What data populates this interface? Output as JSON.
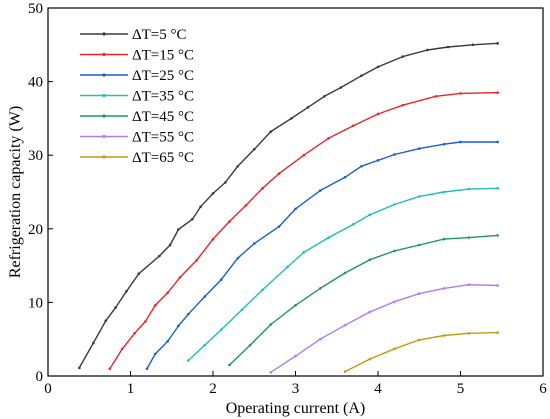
{
  "chart_data": {
    "type": "line",
    "xlabel": "Operating current (A)",
    "ylabel": "Refrigeration capacity (W)",
    "xlim": [
      0,
      6
    ],
    "ylim": [
      0,
      50
    ],
    "xticks": [
      "0",
      "1",
      "2",
      "3",
      "4",
      "5",
      "6"
    ],
    "yticks": [
      "0",
      "10",
      "20",
      "30",
      "40",
      "50"
    ],
    "grid": false,
    "legend_position": "top-left",
    "series": [
      {
        "name": "ΔT=5 °C",
        "color": "#3a3a3a",
        "points": [
          [
            0.38,
            1.1
          ],
          [
            0.55,
            4.5
          ],
          [
            0.7,
            7.5
          ],
          [
            0.82,
            9.3
          ],
          [
            0.95,
            11.5
          ],
          [
            1.1,
            13.9
          ],
          [
            1.35,
            16.3
          ],
          [
            1.48,
            17.8
          ],
          [
            1.58,
            19.9
          ],
          [
            1.75,
            21.3
          ],
          [
            1.85,
            23.0
          ],
          [
            2.0,
            24.8
          ],
          [
            2.15,
            26.3
          ],
          [
            2.3,
            28.5
          ],
          [
            2.5,
            30.8
          ],
          [
            2.7,
            33.2
          ],
          [
            2.95,
            35.0
          ],
          [
            3.15,
            36.5
          ],
          [
            3.35,
            38.0
          ],
          [
            3.55,
            39.2
          ],
          [
            3.8,
            40.8
          ],
          [
            4.0,
            42.0
          ],
          [
            4.3,
            43.4
          ],
          [
            4.6,
            44.3
          ],
          [
            4.85,
            44.7
          ],
          [
            5.15,
            45.0
          ],
          [
            5.45,
            45.2
          ]
        ]
      },
      {
        "name": "ΔT=15 °C",
        "color": "#e8262a",
        "points": [
          [
            0.75,
            1.0
          ],
          [
            0.9,
            3.7
          ],
          [
            1.05,
            5.8
          ],
          [
            1.18,
            7.4
          ],
          [
            1.3,
            9.6
          ],
          [
            1.45,
            11.3
          ],
          [
            1.6,
            13.4
          ],
          [
            1.8,
            15.7
          ],
          [
            2.0,
            18.6
          ],
          [
            2.2,
            21.0
          ],
          [
            2.4,
            23.2
          ],
          [
            2.6,
            25.5
          ],
          [
            2.8,
            27.5
          ],
          [
            3.1,
            30.0
          ],
          [
            3.4,
            32.3
          ],
          [
            3.7,
            34.0
          ],
          [
            4.0,
            35.6
          ],
          [
            4.3,
            36.8
          ],
          [
            4.7,
            38.0
          ],
          [
            5.0,
            38.4
          ],
          [
            5.45,
            38.5
          ]
        ]
      },
      {
        "name": "ΔT=25 °C",
        "color": "#1a5fcf",
        "points": [
          [
            1.2,
            1.0
          ],
          [
            1.3,
            3.0
          ],
          [
            1.45,
            4.7
          ],
          [
            1.58,
            6.8
          ],
          [
            1.7,
            8.4
          ],
          [
            1.9,
            10.8
          ],
          [
            2.1,
            13.1
          ],
          [
            2.3,
            16.0
          ],
          [
            2.5,
            18.0
          ],
          [
            2.8,
            20.3
          ],
          [
            3.0,
            22.7
          ],
          [
            3.3,
            25.2
          ],
          [
            3.6,
            27.0
          ],
          [
            3.8,
            28.5
          ],
          [
            4.0,
            29.3
          ],
          [
            4.2,
            30.1
          ],
          [
            4.5,
            30.9
          ],
          [
            4.8,
            31.5
          ],
          [
            5.0,
            31.8
          ],
          [
            5.45,
            31.8
          ]
        ]
      },
      {
        "name": "ΔT=35 °C",
        "color": "#22bcc0",
        "points": [
          [
            1.7,
            2.1
          ],
          [
            1.9,
            4.2
          ],
          [
            2.1,
            6.3
          ],
          [
            2.35,
            9.0
          ],
          [
            2.6,
            11.7
          ],
          [
            2.9,
            14.8
          ],
          [
            3.1,
            16.8
          ],
          [
            3.4,
            18.8
          ],
          [
            3.7,
            20.6
          ],
          [
            3.9,
            21.9
          ],
          [
            4.2,
            23.3
          ],
          [
            4.5,
            24.4
          ],
          [
            4.8,
            25.0
          ],
          [
            5.1,
            25.4
          ],
          [
            5.45,
            25.5
          ]
        ]
      },
      {
        "name": "ΔT=45 °C",
        "color": "#20985a",
        "points": [
          [
            2.2,
            1.5
          ],
          [
            2.45,
            4.2
          ],
          [
            2.7,
            7.0
          ],
          [
            3.0,
            9.6
          ],
          [
            3.3,
            11.9
          ],
          [
            3.6,
            14.0
          ],
          [
            3.9,
            15.8
          ],
          [
            4.2,
            17.0
          ],
          [
            4.5,
            17.8
          ],
          [
            4.8,
            18.6
          ],
          [
            5.1,
            18.8
          ],
          [
            5.45,
            19.1
          ]
        ]
      },
      {
        "name": "ΔT=55 °C",
        "color": "#b07af0",
        "points": [
          [
            2.7,
            0.5
          ],
          [
            3.0,
            2.7
          ],
          [
            3.3,
            5.0
          ],
          [
            3.6,
            6.9
          ],
          [
            3.9,
            8.7
          ],
          [
            4.2,
            10.1
          ],
          [
            4.5,
            11.2
          ],
          [
            4.8,
            11.9
          ],
          [
            5.1,
            12.4
          ],
          [
            5.45,
            12.3
          ]
        ]
      },
      {
        "name": "ΔT=65 °C",
        "color": "#c49a10",
        "points": [
          [
            3.6,
            0.6
          ],
          [
            3.9,
            2.3
          ],
          [
            4.2,
            3.7
          ],
          [
            4.5,
            4.9
          ],
          [
            4.8,
            5.5
          ],
          [
            5.1,
            5.8
          ],
          [
            5.45,
            5.9
          ]
        ]
      }
    ]
  }
}
